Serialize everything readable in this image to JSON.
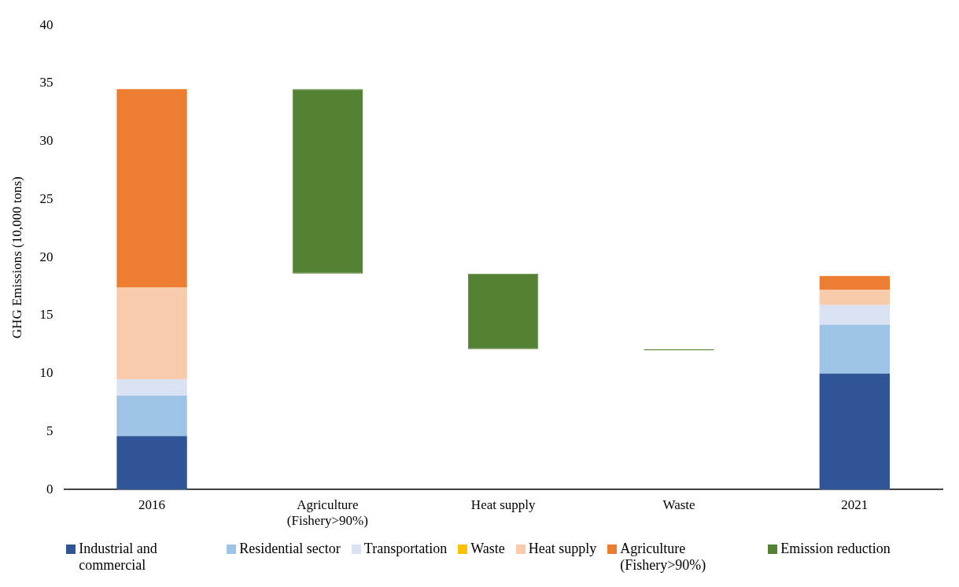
{
  "chart_data": {
    "type": "bar",
    "stacked": true,
    "ylabel": "GHG Emissions (10,000 tons)",
    "categories": [
      "2016",
      "Agriculture (Fishery>90%)",
      "Heat supply",
      "Waste",
      "2021"
    ],
    "ylim": [
      0,
      40
    ],
    "yticks": [
      0,
      5,
      10,
      15,
      20,
      25,
      30,
      35,
      40
    ],
    "grid": false,
    "legend": "bottom",
    "series": [
      {
        "name": "Industrial and commercial",
        "color": "#2f5597",
        "values": [
          4.6,
          null,
          null,
          null,
          10.0
        ]
      },
      {
        "name": "Residential sector",
        "color": "#9dc3e6",
        "values": [
          3.5,
          null,
          null,
          null,
          4.2
        ]
      },
      {
        "name": "Transportation",
        "color": "#dae3f3",
        "values": [
          1.4,
          null,
          null,
          null,
          1.7
        ]
      },
      {
        "name": "Waste",
        "color": "#ffc000",
        "values": [
          0,
          null,
          null,
          null,
          0
        ]
      },
      {
        "name": "Heat supply",
        "color": "#f8cbad",
        "values": [
          7.9,
          null,
          null,
          null,
          1.3
        ]
      },
      {
        "name": "Agriculture (Fishery>90%)",
        "color": "#ed7d31",
        "values": [
          17.1,
          null,
          null,
          null,
          1.2
        ]
      },
      {
        "name": "Emission reduction",
        "color": "#548235",
        "values": [
          null,
          15.9,
          6.5,
          0.1,
          null
        ],
        "base": [
          null,
          18.6,
          12.1,
          12.0,
          null
        ]
      }
    ]
  }
}
